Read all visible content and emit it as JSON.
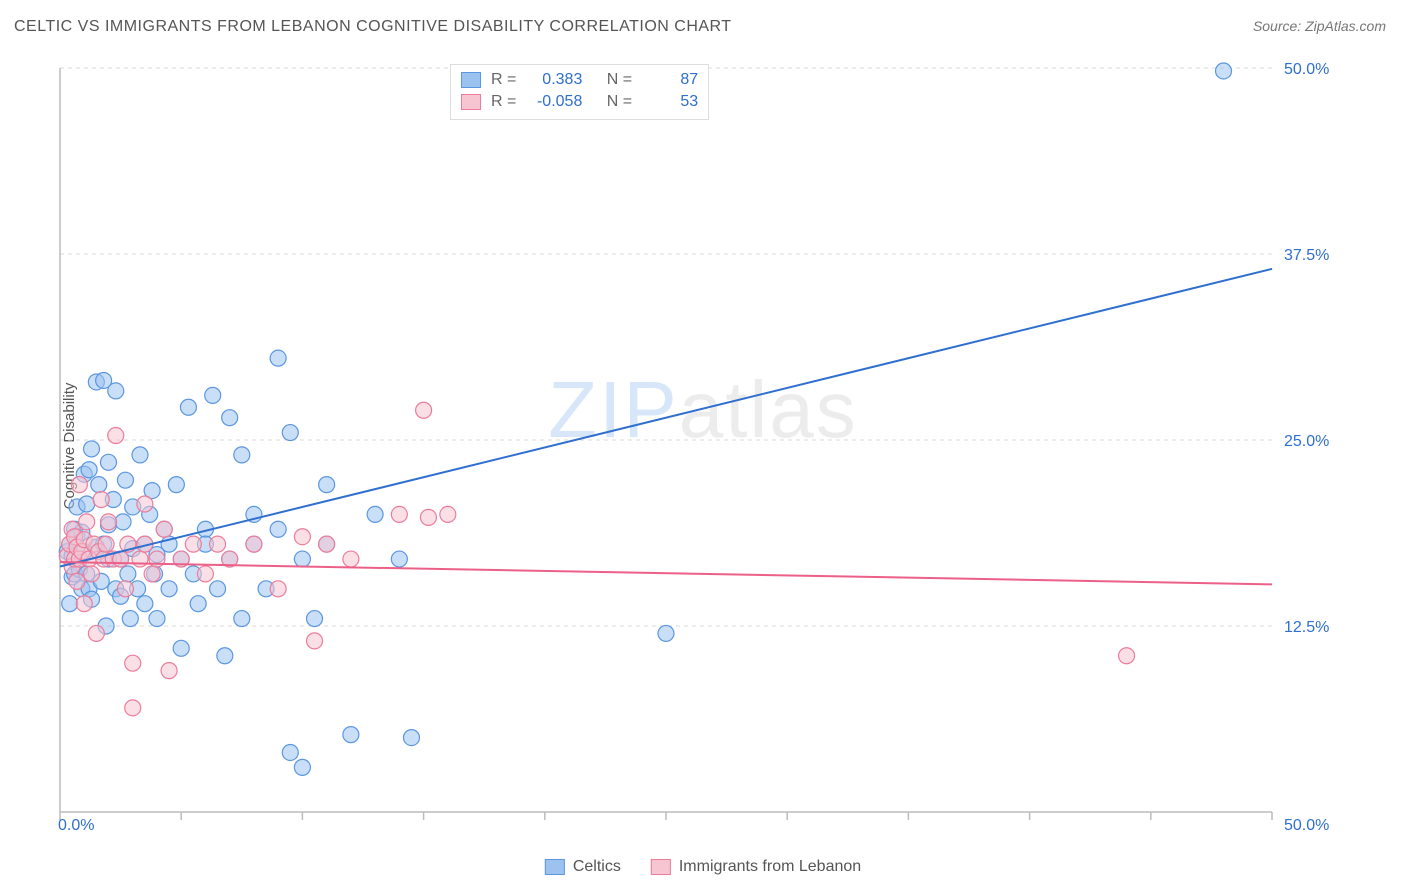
{
  "title": "CELTIC VS IMMIGRANTS FROM LEBANON COGNITIVE DISABILITY CORRELATION CHART",
  "source": "Source: ZipAtlas.com",
  "ylabel": "Cognitive Disability",
  "watermark_a": "ZIP",
  "watermark_b": "atlas",
  "chart": {
    "type": "scatter",
    "xlim": [
      0,
      50
    ],
    "ylim": [
      0,
      50
    ],
    "x_ticks": [
      0,
      5,
      10,
      15,
      20,
      25,
      30,
      35,
      40,
      45,
      50
    ],
    "y_gridlines": [
      12.5,
      25,
      37.5,
      50
    ],
    "x_tick_labels": {
      "0": "0.0%",
      "50": "50.0%"
    },
    "y_tick_labels": {
      "12.5": "12.5%",
      "25": "25.0%",
      "37.5": "37.5%",
      "50": "50.0%"
    },
    "background_color": "#ffffff",
    "grid_color": "#d9d9d9",
    "axis_color": "#bcbcbc",
    "tick_label_color": "#2f6fd0",
    "marker_radius": 8,
    "marker_opacity": 0.55,
    "series": [
      {
        "name": "Celtics",
        "color_fill": "#9cc2f0",
        "color_stroke": "#5b97e1",
        "R": 0.383,
        "N": 87,
        "trend": {
          "color": "#2f6fd0",
          "width": 2,
          "x1": 0,
          "y1": 16.5,
          "x2": 50,
          "y2": 36.5
        },
        "points": [
          [
            0.3,
            17.5
          ],
          [
            0.4,
            18.0
          ],
          [
            0.5,
            15.8
          ],
          [
            0.5,
            17.2
          ],
          [
            0.6,
            19.0
          ],
          [
            0.6,
            16.0
          ],
          [
            0.7,
            18.5
          ],
          [
            0.7,
            20.5
          ],
          [
            0.8,
            17.0
          ],
          [
            0.8,
            16.3
          ],
          [
            0.9,
            15.0
          ],
          [
            0.9,
            18.8
          ],
          [
            1.0,
            22.7
          ],
          [
            1.0,
            17.5
          ],
          [
            1.1,
            20.7
          ],
          [
            1.1,
            16.0
          ],
          [
            1.2,
            15.0
          ],
          [
            1.2,
            23.0
          ],
          [
            1.3,
            24.4
          ],
          [
            1.3,
            14.3
          ],
          [
            1.5,
            28.9
          ],
          [
            1.5,
            17.8
          ],
          [
            1.6,
            22.0
          ],
          [
            1.7,
            15.5
          ],
          [
            1.8,
            18.0
          ],
          [
            1.8,
            29.0
          ],
          [
            1.9,
            12.5
          ],
          [
            2.0,
            19.3
          ],
          [
            2.0,
            17.0
          ],
          [
            2.0,
            23.5
          ],
          [
            2.2,
            21.0
          ],
          [
            2.3,
            15.0
          ],
          [
            2.3,
            28.3
          ],
          [
            2.5,
            17.0
          ],
          [
            2.5,
            14.5
          ],
          [
            2.6,
            19.5
          ],
          [
            2.7,
            22.3
          ],
          [
            2.8,
            16.0
          ],
          [
            2.9,
            13.0
          ],
          [
            3.0,
            20.5
          ],
          [
            3.0,
            17.7
          ],
          [
            3.2,
            15.0
          ],
          [
            3.3,
            24.0
          ],
          [
            3.5,
            18.0
          ],
          [
            3.5,
            14.0
          ],
          [
            3.7,
            20.0
          ],
          [
            3.8,
            21.6
          ],
          [
            3.9,
            16.0
          ],
          [
            4.0,
            17.3
          ],
          [
            4.0,
            13.0
          ],
          [
            4.3,
            19.0
          ],
          [
            4.5,
            18.0
          ],
          [
            4.5,
            15.0
          ],
          [
            4.8,
            22.0
          ],
          [
            5.0,
            17.0
          ],
          [
            5.0,
            11.0
          ],
          [
            5.3,
            27.2
          ],
          [
            5.5,
            16.0
          ],
          [
            5.7,
            14.0
          ],
          [
            6.0,
            19.0
          ],
          [
            6.0,
            18.0
          ],
          [
            6.3,
            28.0
          ],
          [
            6.5,
            15.0
          ],
          [
            6.8,
            10.5
          ],
          [
            7.0,
            17.0
          ],
          [
            7.0,
            26.5
          ],
          [
            7.5,
            24.0
          ],
          [
            7.5,
            13.0
          ],
          [
            8.0,
            18.0
          ],
          [
            8.0,
            20.0
          ],
          [
            8.5,
            15.0
          ],
          [
            9.0,
            19.0
          ],
          [
            9.0,
            30.5
          ],
          [
            9.5,
            25.5
          ],
          [
            9.5,
            4.0
          ],
          [
            10.0,
            17.0
          ],
          [
            10.0,
            3.0
          ],
          [
            10.5,
            13.0
          ],
          [
            11.0,
            18.0
          ],
          [
            11.0,
            22.0
          ],
          [
            12.0,
            5.2
          ],
          [
            13.0,
            20.0
          ],
          [
            14.0,
            17.0
          ],
          [
            14.5,
            5.0
          ],
          [
            25.0,
            12.0
          ],
          [
            48.0,
            49.8
          ],
          [
            0.4,
            14.0
          ]
        ]
      },
      {
        "name": "Immigrants from Lebanon",
        "color_fill": "#f6c5d1",
        "color_stroke": "#ec7d9a",
        "R": -0.058,
        "N": 53,
        "trend": {
          "color": "#ec5f87",
          "width": 2,
          "x1": 0,
          "y1": 16.8,
          "x2": 50,
          "y2": 15.3
        },
        "points": [
          [
            0.3,
            17.2
          ],
          [
            0.4,
            18.0
          ],
          [
            0.5,
            16.5
          ],
          [
            0.5,
            19.0
          ],
          [
            0.6,
            18.5
          ],
          [
            0.6,
            17.0
          ],
          [
            0.7,
            17.8
          ],
          [
            0.7,
            15.5
          ],
          [
            0.8,
            22.0
          ],
          [
            0.8,
            17.0
          ],
          [
            0.9,
            17.5
          ],
          [
            1.0,
            18.3
          ],
          [
            1.0,
            14.0
          ],
          [
            1.1,
            19.5
          ],
          [
            1.2,
            17.0
          ],
          [
            1.3,
            16.0
          ],
          [
            1.4,
            18.0
          ],
          [
            1.5,
            12.0
          ],
          [
            1.6,
            17.5
          ],
          [
            1.7,
            21.0
          ],
          [
            1.8,
            17.0
          ],
          [
            1.9,
            18.0
          ],
          [
            2.0,
            19.5
          ],
          [
            2.2,
            17.0
          ],
          [
            2.3,
            25.3
          ],
          [
            2.5,
            17.0
          ],
          [
            2.7,
            15.0
          ],
          [
            2.8,
            18.0
          ],
          [
            3.0,
            10.0
          ],
          [
            3.0,
            7.0
          ],
          [
            3.3,
            17.0
          ],
          [
            3.5,
            18.0
          ],
          [
            3.8,
            16.0
          ],
          [
            4.0,
            17.0
          ],
          [
            4.3,
            19.0
          ],
          [
            4.5,
            9.5
          ],
          [
            5.0,
            17.0
          ],
          [
            5.5,
            18.0
          ],
          [
            6.0,
            16.0
          ],
          [
            6.5,
            18.0
          ],
          [
            7.0,
            17.0
          ],
          [
            8.0,
            18.0
          ],
          [
            9.0,
            15.0
          ],
          [
            10.0,
            18.5
          ],
          [
            10.5,
            11.5
          ],
          [
            11.0,
            18.0
          ],
          [
            12.0,
            17.0
          ],
          [
            14.0,
            20.0
          ],
          [
            15.0,
            27.0
          ],
          [
            15.2,
            19.8
          ],
          [
            16.0,
            20.0
          ],
          [
            44.0,
            10.5
          ],
          [
            3.5,
            20.7
          ]
        ]
      }
    ]
  },
  "legend_top": {
    "r_label": "R =",
    "n_label": "N ="
  },
  "legend_bottom": [
    {
      "label": "Celtics",
      "fill": "#9cc2f0",
      "stroke": "#5b97e1"
    },
    {
      "label": "Immigrants from Lebanon",
      "fill": "#f6c5d1",
      "stroke": "#ec7d9a"
    }
  ]
}
